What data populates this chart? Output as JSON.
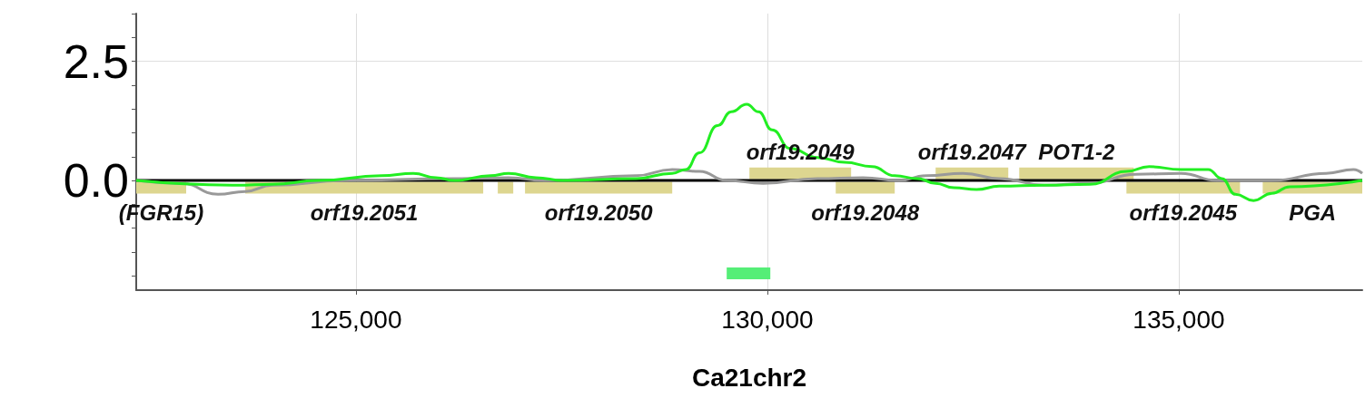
{
  "chart_data": {
    "type": "line",
    "xlabel": "Ca21chr2",
    "xlim": [
      122330,
      137230
    ],
    "ylim": [
      -2.3,
      3.5
    ],
    "xticks": [
      {
        "value": 125000,
        "label": "125,000"
      },
      {
        "value": 130000,
        "label": "130,000"
      },
      {
        "value": 135000,
        "label": "135,000"
      }
    ],
    "yticks": [
      {
        "value": -2,
        "label": null
      },
      {
        "value": -1.5,
        "label": null
      },
      {
        "value": -1,
        "label": null
      },
      {
        "value": -0.5,
        "label": null
      },
      {
        "value": 0,
        "label": "0.0"
      },
      {
        "value": 0.5,
        "label": null
      },
      {
        "value": 1,
        "label": null
      },
      {
        "value": 1.5,
        "label": null
      },
      {
        "value": 2,
        "label": null
      },
      2.5,
      {
        "value": 3,
        "label": null
      },
      {
        "value": 3.5,
        "label": null
      }
    ],
    "grid": true,
    "marker": "none",
    "line_style": "solid",
    "series": [
      {
        "name": "(FGR15)",
        "color": "#ddd690",
        "x": [
          122330,
          122937
        ],
        "values": [
          -0.15,
          -0.15
        ]
      },
      {
        "name": "orf19.2051",
        "color": "#ddd690",
        "x": [
          123655,
          126547
        ],
        "values": [
          -0.15,
          -0.15
        ]
      },
      {
        "color": "#ddd690",
        "x": [
          126724,
          126912
        ],
        "values": [
          -0.15,
          -0.15
        ]
      },
      {
        "name": "orf19.2050",
        "color": "#ddd690",
        "x": [
          127055,
          128844
        ],
        "values": [
          -0.15,
          -0.15
        ]
      },
      {
        "name": "orf19.2048",
        "color": "#ddd690",
        "x": [
          130831,
          131548
        ],
        "values": [
          -0.15,
          -0.15
        ]
      },
      {
        "name": "orf19.2045",
        "color": "#ddd690",
        "x": [
          134364,
          135744
        ],
        "values": [
          -0.15,
          -0.15
        ]
      },
      {
        "name": "PGA",
        "color": "#ddd690",
        "x": [
          136020,
          137230
        ],
        "values": [
          -0.15,
          -0.15
        ]
      },
      {
        "name": "orf19.2049",
        "color": "#ddd690",
        "x": [
          129782,
          131018
        ],
        "values": [
          0.15,
          0.15
        ]
      },
      {
        "name": "orf19.2047",
        "color": "#ddd690",
        "x": [
          132045,
          132928
        ],
        "values": [
          0.15,
          0.15
        ]
      },
      {
        "name": "POT1-2",
        "color": "#ddd690",
        "x": [
          133061,
          134452
        ],
        "values": [
          0.15,
          0.15
        ]
      },
      {
        "color": "#55ee77",
        "x": [
          129506,
          130036
        ],
        "values": [
          -1.95,
          -1.95
        ]
      },
      {
        "color": "#000000",
        "x": [
          122330,
          137230
        ],
        "values": [
          0,
          0
        ]
      },
      {
        "color": "#999999",
        "x": [
          122330,
          122882,
          123324,
          123655,
          123986,
          124869,
          126194,
          126856,
          127298,
          128402,
          128844,
          129175,
          129506,
          129948,
          130610,
          131162,
          131604,
          131935,
          132376,
          132818,
          133370,
          133922,
          134474,
          135026,
          135468,
          136130,
          136792,
          137124,
          137230
        ],
        "values": [
          0,
          -0.06,
          -0.29,
          -0.23,
          -0.1,
          0,
          0.04,
          0.06,
          0,
          0.1,
          0.23,
          0.19,
          0,
          -0.06,
          0.04,
          0.06,
          0,
          0.1,
          0.15,
          0.04,
          -0.1,
          -0.06,
          0.13,
          0.15,
          0,
          0,
          0.15,
          0.23,
          0.15
        ]
      },
      {
        "color": "#22ee22",
        "x": [
          122330,
          123544,
          123986,
          124538,
          125311,
          125697,
          125973,
          126194,
          126636,
          126856,
          127188,
          127519,
          128402,
          128844,
          129009,
          129175,
          129396,
          129561,
          129749,
          129892,
          130058,
          130279,
          130610,
          130941,
          131272,
          131548,
          131824,
          132045,
          132266,
          132542,
          132818,
          133370,
          133922,
          134364,
          134640,
          135026,
          135357,
          135523,
          135688,
          135909,
          136130,
          136351,
          137230
        ],
        "values": [
          0,
          -0.1,
          -0.08,
          0,
          0.1,
          0.15,
          0.06,
          0,
          0.1,
          0.15,
          0.06,
          0,
          0.04,
          0.15,
          0.23,
          0.58,
          1.15,
          1.44,
          1.6,
          1.44,
          1.06,
          0.67,
          0.48,
          0.38,
          0.29,
          0.1,
          0.04,
          -0.06,
          -0.15,
          -0.19,
          -0.12,
          -0.1,
          -0.08,
          0.19,
          0.29,
          0.23,
          0.23,
          0.04,
          -0.29,
          -0.42,
          -0.27,
          -0.13,
          0
        ]
      }
    ]
  }
}
